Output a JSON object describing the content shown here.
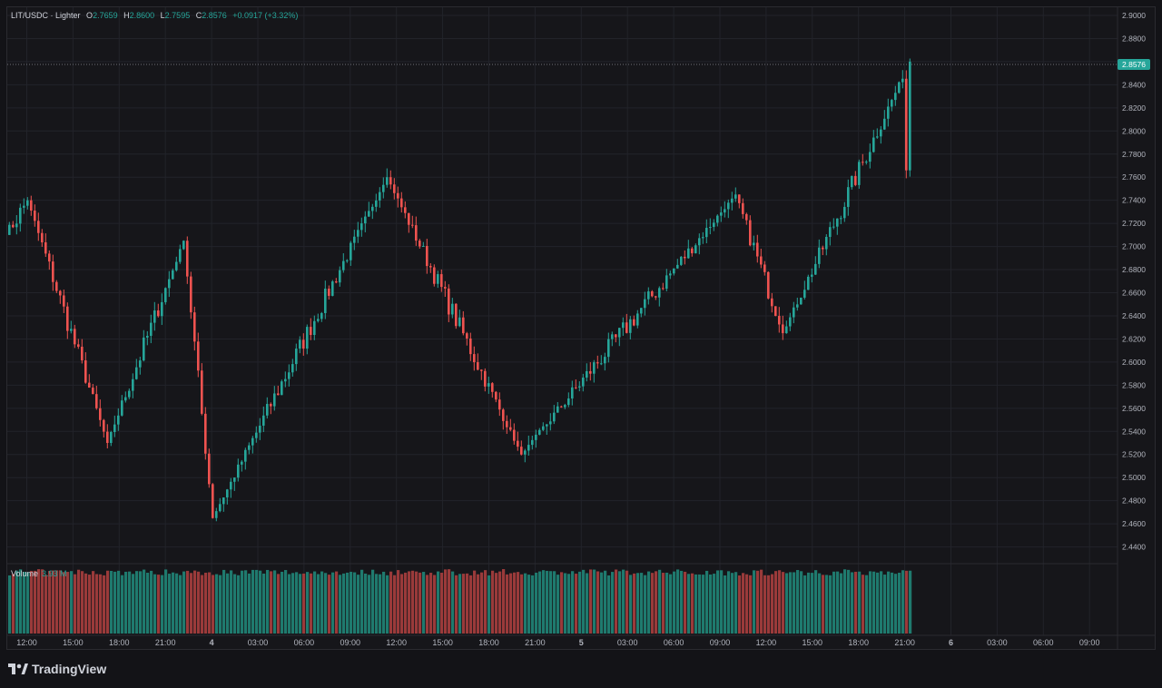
{
  "legend": {
    "symbol": "LIT/USDC · Lighter",
    "open_key": "O",
    "open": "2.7659",
    "high_key": "H",
    "high": "2.8600",
    "low_key": "L",
    "low": "2.7595",
    "close_key": "C",
    "close": "2.8576",
    "change": "+0.0917 (+3.32%)"
  },
  "volume_legend": {
    "label": "Volume",
    "value": "3.93 M"
  },
  "last_price_badge": "2.8576",
  "brand": {
    "name": "TradingView"
  },
  "colors": {
    "up": "#26a69a",
    "down": "#ef5350",
    "background": "#16161a",
    "grid": "#22232a"
  },
  "chart_data": {
    "type": "candlestick",
    "symbol": "LIT/USDC",
    "exchange": "Lighter",
    "y_axis": {
      "ticks": [
        "2.9000",
        "2.8800",
        "2.8600",
        "2.8400",
        "2.8200",
        "2.8000",
        "2.7800",
        "2.7600",
        "2.7400",
        "2.7200",
        "2.7000",
        "2.6800",
        "2.6600",
        "2.6400",
        "2.6200",
        "2.6000",
        "2.5800",
        "2.5600",
        "2.5400",
        "2.5200",
        "2.5000",
        "2.4800",
        "2.4600",
        "2.4400"
      ],
      "range": [
        2.4316,
        2.9108
      ]
    },
    "x_axis": {
      "ticks": [
        "12:00",
        "15:00",
        "18:00",
        "21:00",
        "4",
        "03:00",
        "06:00",
        "09:00",
        "12:00",
        "15:00",
        "18:00",
        "21:00",
        "5",
        "03:00",
        "06:00",
        "09:00",
        "12:00",
        "15:00",
        "18:00",
        "21:00",
        "6",
        "03:00",
        "06:00",
        "09:00"
      ]
    },
    "last_price": 2.8576,
    "key_points": [
      {
        "label": "start",
        "price": 2.71
      },
      {
        "label": "day3 high",
        "price": 2.74
      },
      {
        "label": "day3 low",
        "price": 2.53
      },
      {
        "label": "day3 evening high",
        "price": 2.705
      },
      {
        "label": "day4 low",
        "price": 2.465
      },
      {
        "label": "day4 spike high",
        "price": 2.76
      },
      {
        "label": "day4 late low",
        "price": 2.52
      },
      {
        "label": "day5 midday high",
        "price": 2.745
      },
      {
        "label": "day5 afternoon low",
        "price": 2.625
      },
      {
        "label": "final high",
        "price": 2.86
      }
    ],
    "volume_value": "3.93 M",
    "grid": true
  }
}
